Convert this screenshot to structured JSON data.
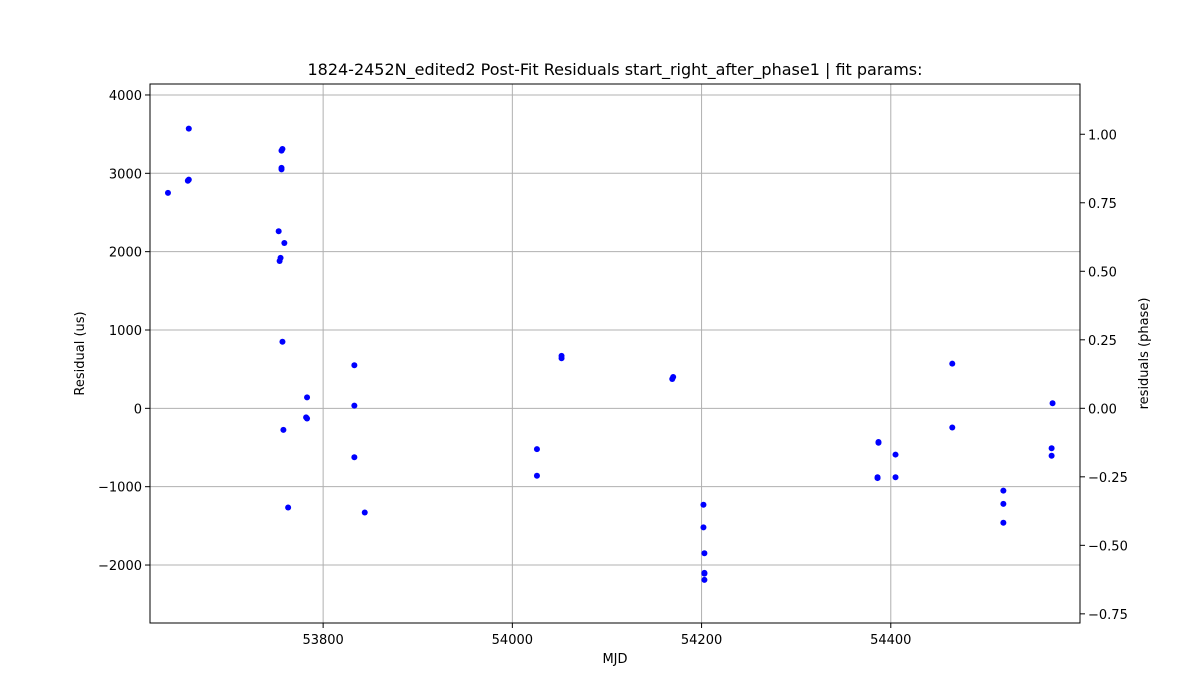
{
  "chart_data": {
    "type": "scatter",
    "title": "1824-2452N_edited2 Post-Fit Residuals start_right_after_phase1 | fit params:",
    "xlabel": "MJD",
    "ylabel": "Residual (us)",
    "y2label": "residuals (phase)",
    "xlim": [
      53617,
      54600
    ],
    "ylim": [
      4140,
      -2740
    ],
    "y2lim": [
      1.1834,
      -0.7834
    ],
    "y_inverted": true,
    "grid": true,
    "marker_color": "#0000ff",
    "xticks": [
      53800,
      54000,
      54200,
      54400
    ],
    "xtick_labels": [
      "53800",
      "54000",
      "54200",
      "54400"
    ],
    "yticks": [
      -2000,
      -1000,
      0,
      1000,
      2000,
      3000,
      4000
    ],
    "ytick_labels": [
      "−2000",
      "−1000",
      "0",
      "1000",
      "2000",
      "3000",
      "4000"
    ],
    "y2ticks": [
      -0.75,
      -0.5,
      -0.25,
      0.0,
      0.25,
      0.5,
      0.75,
      1.0
    ],
    "y2tick_labels": [
      "−0.75",
      "−0.50",
      "−0.25",
      "0.00",
      "0.25",
      "0.50",
      "0.75",
      "1.00"
    ],
    "series": [
      {
        "x": [
          53636,
          53657,
          53658,
          53658,
          53753,
          53754,
          53755,
          53756,
          53756,
          53756,
          53757,
          53757,
          53758,
          53759,
          53763,
          53782,
          53783,
          53783,
          53833,
          53833,
          53833,
          53844,
          54026,
          54026,
          54052,
          54052,
          54169,
          54170,
          54202,
          54202,
          54203,
          54203,
          54203,
          54203,
          54386,
          54386,
          54387,
          54387,
          54405,
          54405,
          54465,
          54465,
          54519,
          54519,
          54519,
          54570,
          54570,
          54571
        ],
        "y": [
          2750,
          2905,
          2920,
          3570,
          2260,
          1880,
          1920,
          3050,
          3070,
          3290,
          3310,
          850,
          -275,
          2110,
          -1265,
          -115,
          -130,
          140,
          550,
          35,
          -625,
          -1330,
          -860,
          -520,
          640,
          670,
          375,
          400,
          -1230,
          -1520,
          -1850,
          -2110,
          -2190,
          -2100,
          -880,
          -890,
          -430,
          -440,
          -880,
          -590,
          570,
          -245,
          -1460,
          -1220,
          -1050,
          -605,
          -510,
          65
        ]
      }
    ]
  }
}
